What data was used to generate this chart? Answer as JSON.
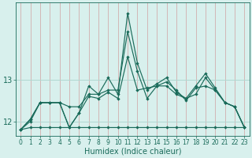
{
  "xlabel": "Humidex (Indice chaleur)",
  "x": [
    0,
    1,
    2,
    3,
    4,
    5,
    6,
    7,
    8,
    9,
    10,
    11,
    12,
    13,
    14,
    15,
    16,
    17,
    18,
    19,
    20,
    21,
    22,
    23
  ],
  "series1": [
    11.8,
    12.0,
    12.45,
    12.45,
    12.45,
    11.85,
    12.2,
    12.6,
    12.55,
    12.7,
    12.55,
    13.55,
    12.75,
    12.8,
    12.85,
    12.85,
    12.65,
    12.55,
    12.65,
    13.05,
    12.75,
    12.45,
    12.35,
    11.85
  ],
  "series2": [
    11.8,
    12.05,
    12.45,
    12.45,
    12.45,
    12.35,
    12.35,
    12.65,
    12.65,
    12.75,
    12.75,
    14.15,
    13.2,
    12.55,
    12.85,
    12.95,
    12.75,
    12.5,
    12.8,
    12.85,
    12.75,
    12.45,
    12.35,
    11.85
  ],
  "series3": [
    11.8,
    12.05,
    12.45,
    12.45,
    12.45,
    11.85,
    12.2,
    12.85,
    12.65,
    13.05,
    12.65,
    14.6,
    13.4,
    12.75,
    12.9,
    13.05,
    12.7,
    12.55,
    12.85,
    13.15,
    12.8,
    12.45,
    12.35,
    11.85
  ],
  "series4": [
    11.8,
    11.85,
    11.85,
    11.85,
    11.85,
    11.85,
    11.85,
    11.85,
    11.85,
    11.85,
    11.85,
    11.85,
    11.85,
    11.85,
    11.85,
    11.85,
    11.85,
    11.85,
    11.85,
    11.85,
    11.85,
    11.85,
    11.85,
    11.85
  ],
  "line_color": "#1a6b5a",
  "bg_color": "#d8f0ed",
  "grid_color": "#b0d8d2",
  "ylim": [
    11.65,
    14.85
  ],
  "yticks": [
    12,
    13
  ],
  "xticks": [
    0,
    1,
    2,
    3,
    4,
    5,
    6,
    7,
    8,
    9,
    10,
    11,
    12,
    13,
    14,
    15,
    16,
    17,
    18,
    19,
    20,
    21,
    22,
    23
  ],
  "marker": "D",
  "markersize": 2.2,
  "linewidth": 0.85
}
